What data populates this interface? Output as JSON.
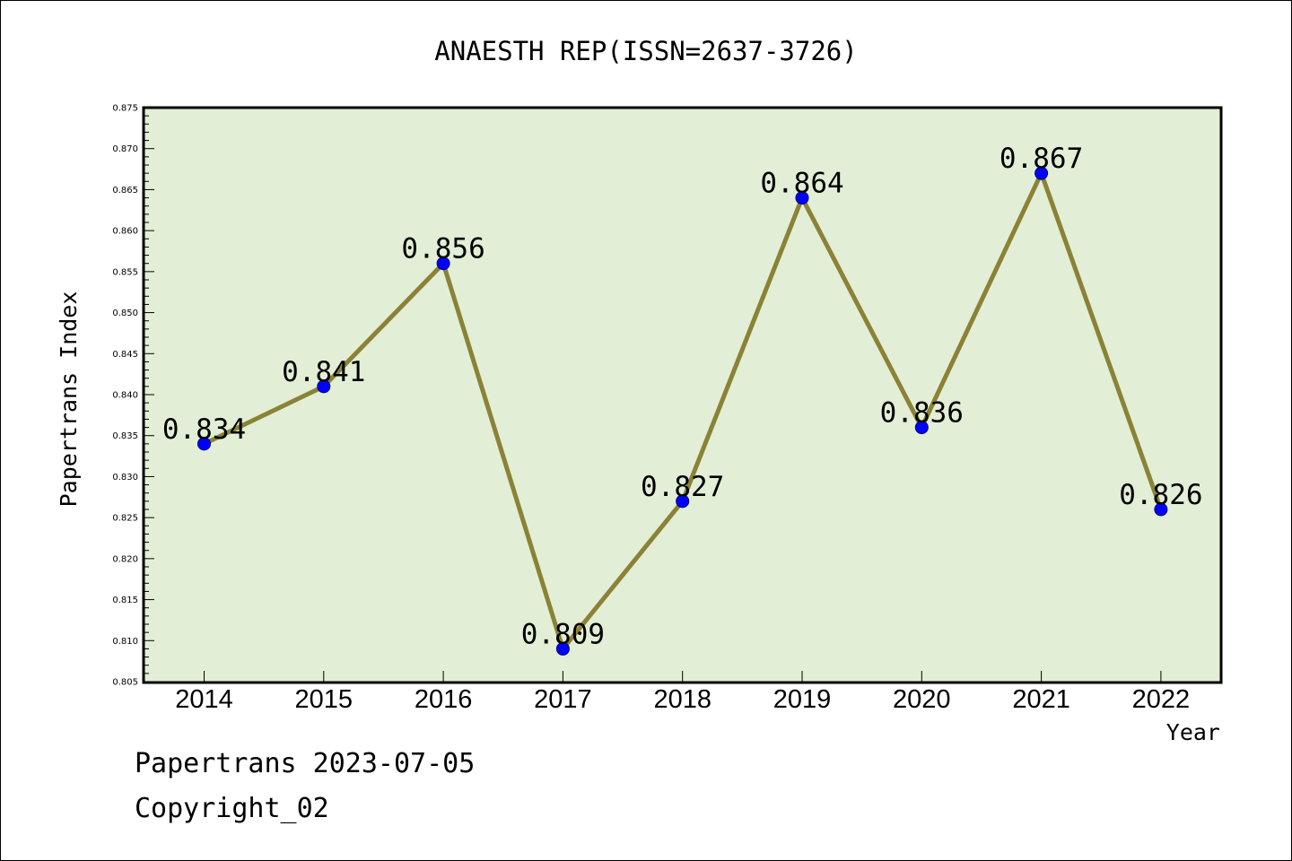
{
  "chart_data": {
    "type": "line",
    "title": "ANAESTH REP(ISSN=2637-3726)",
    "xlabel": "Year",
    "ylabel": "Papertrans Index",
    "categories": [
      "2014",
      "2015",
      "2016",
      "2017",
      "2018",
      "2019",
      "2020",
      "2021",
      "2022"
    ],
    "series": [
      {
        "values": [
          0.834,
          0.841,
          0.856,
          0.809,
          0.827,
          0.864,
          0.836,
          0.867,
          0.826
        ],
        "labels": [
          "0.834",
          "0.841",
          "0.856",
          "0.809",
          "0.827",
          "0.864",
          "0.836",
          "0.867",
          "0.826"
        ]
      }
    ],
    "ylim": [
      0.805,
      0.875
    ],
    "yticks": [
      "0.805",
      "0.810",
      "0.815",
      "0.820",
      "0.825",
      "0.830",
      "0.835",
      "0.840",
      "0.845",
      "0.850",
      "0.855",
      "0.860",
      "0.865",
      "0.870",
      "0.875"
    ],
    "grid": false,
    "legend": "none",
    "colors": {
      "plot_background": "#e2efd6",
      "line": "#8b8236",
      "marker": "#0000ff"
    }
  },
  "footer": {
    "line1": "Papertrans 2023-07-05",
    "line2": "Copyright_02"
  }
}
